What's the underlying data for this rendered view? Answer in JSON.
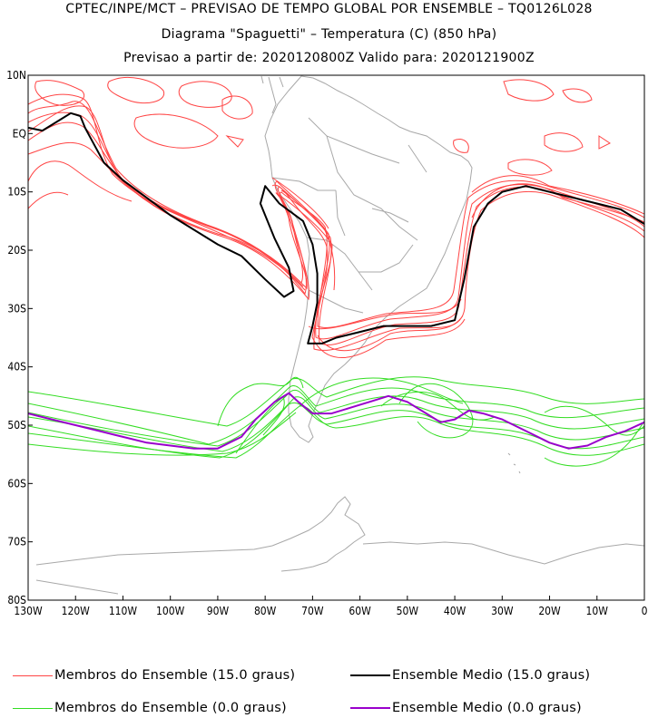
{
  "titles": {
    "line1": "CPTEC/INPE/MCT – PREVISAO DE TEMPO GLOBAL POR ENSEMBLE – TQ0126L028",
    "line2": "Diagrama \"Spaguetti\" – Temperatura (C) (850 hPa)",
    "line3": "Previsao a partir de: 2020120800Z  Valido para: 2020121900Z"
  },
  "axes": {
    "y_labels": [
      "10N",
      "EQ",
      "10S",
      "20S",
      "30S",
      "40S",
      "50S",
      "60S",
      "70S",
      "80S"
    ],
    "x_labels": [
      "130W",
      "120W",
      "110W",
      "100W",
      "90W",
      "80W",
      "70W",
      "60W",
      "50W",
      "40W",
      "30W",
      "20W",
      "10W",
      "0"
    ]
  },
  "map": {
    "lon_range": [
      -130,
      0
    ],
    "lat_range": [
      -80,
      10
    ],
    "contours": [
      {
        "name": "ensemble-mean-15",
        "level": 15.0,
        "color": "#000000",
        "points": [
          [
            -130,
            1
          ],
          [
            -127,
            0.5
          ],
          [
            -124,
            2
          ],
          [
            -121,
            3.5
          ],
          [
            -119,
            3
          ],
          [
            -118,
            1
          ],
          [
            -116,
            -2
          ],
          [
            -114,
            -5
          ],
          [
            -110,
            -8
          ],
          [
            -105,
            -11
          ],
          [
            -100,
            -14
          ],
          [
            -95,
            -16.5
          ],
          [
            -90,
            -19
          ],
          [
            -85,
            -21
          ],
          [
            -80,
            -25
          ],
          [
            -76,
            -28
          ],
          [
            -74,
            -27
          ],
          [
            -75,
            -23
          ],
          [
            -78,
            -18
          ],
          [
            -81,
            -12
          ],
          [
            -80,
            -9
          ],
          [
            -77,
            -12
          ],
          [
            -72,
            -15
          ],
          [
            -70,
            -19
          ],
          [
            -69,
            -24
          ],
          [
            -69,
            -29
          ],
          [
            -70,
            -33
          ],
          [
            -71,
            -36
          ],
          [
            -68,
            -36
          ],
          [
            -65,
            -35
          ],
          [
            -60,
            -34
          ],
          [
            -55,
            -33
          ],
          [
            -50,
            -33
          ],
          [
            -45,
            -33
          ],
          [
            -40,
            -32
          ],
          [
            -38,
            -25
          ],
          [
            -36,
            -16
          ],
          [
            -33,
            -12
          ],
          [
            -30,
            -10
          ],
          [
            -25,
            -9
          ],
          [
            -20,
            -10
          ],
          [
            -15,
            -11
          ],
          [
            -10,
            -12
          ],
          [
            -5,
            -13
          ],
          [
            0,
            -15.5
          ]
        ]
      },
      {
        "name": "ensemble-mean-0",
        "level": 0.0,
        "color": "#9900cc",
        "points": [
          [
            -130,
            -48
          ],
          [
            -125,
            -49
          ],
          [
            -120,
            -50
          ],
          [
            -115,
            -51
          ],
          [
            -110,
            -52
          ],
          [
            -105,
            -53
          ],
          [
            -100,
            -53.5
          ],
          [
            -95,
            -54
          ],
          [
            -90,
            -54
          ],
          [
            -85,
            -52
          ],
          [
            -82,
            -49
          ],
          [
            -78,
            -46
          ],
          [
            -75,
            -44.5
          ],
          [
            -73,
            -46
          ],
          [
            -70,
            -48
          ],
          [
            -66,
            -48
          ],
          [
            -62,
            -47
          ],
          [
            -58,
            -46
          ],
          [
            -54,
            -45
          ],
          [
            -50,
            -46
          ],
          [
            -46,
            -48
          ],
          [
            -43,
            -49.5
          ],
          [
            -40,
            -49
          ],
          [
            -37,
            -47.5
          ],
          [
            -34,
            -48
          ],
          [
            -30,
            -49
          ],
          [
            -25,
            -51
          ],
          [
            -20,
            -53
          ],
          [
            -16,
            -54
          ],
          [
            -12,
            -53.5
          ],
          [
            -8,
            -52
          ],
          [
            -4,
            -51
          ],
          [
            0,
            -49.5
          ]
        ]
      }
    ]
  },
  "legend": [
    {
      "label": "Membros do Ensemble (15.0 graus)",
      "color": "#ff4444"
    },
    {
      "label": "Ensemble Medio (15.0 graus)",
      "color": "#000000"
    },
    {
      "label": "Membros do Ensemble (0.0 graus)",
      "color": "#33dd22"
    },
    {
      "label": "Ensemble Medio (0.0 graus)",
      "color": "#9900cc"
    }
  ]
}
